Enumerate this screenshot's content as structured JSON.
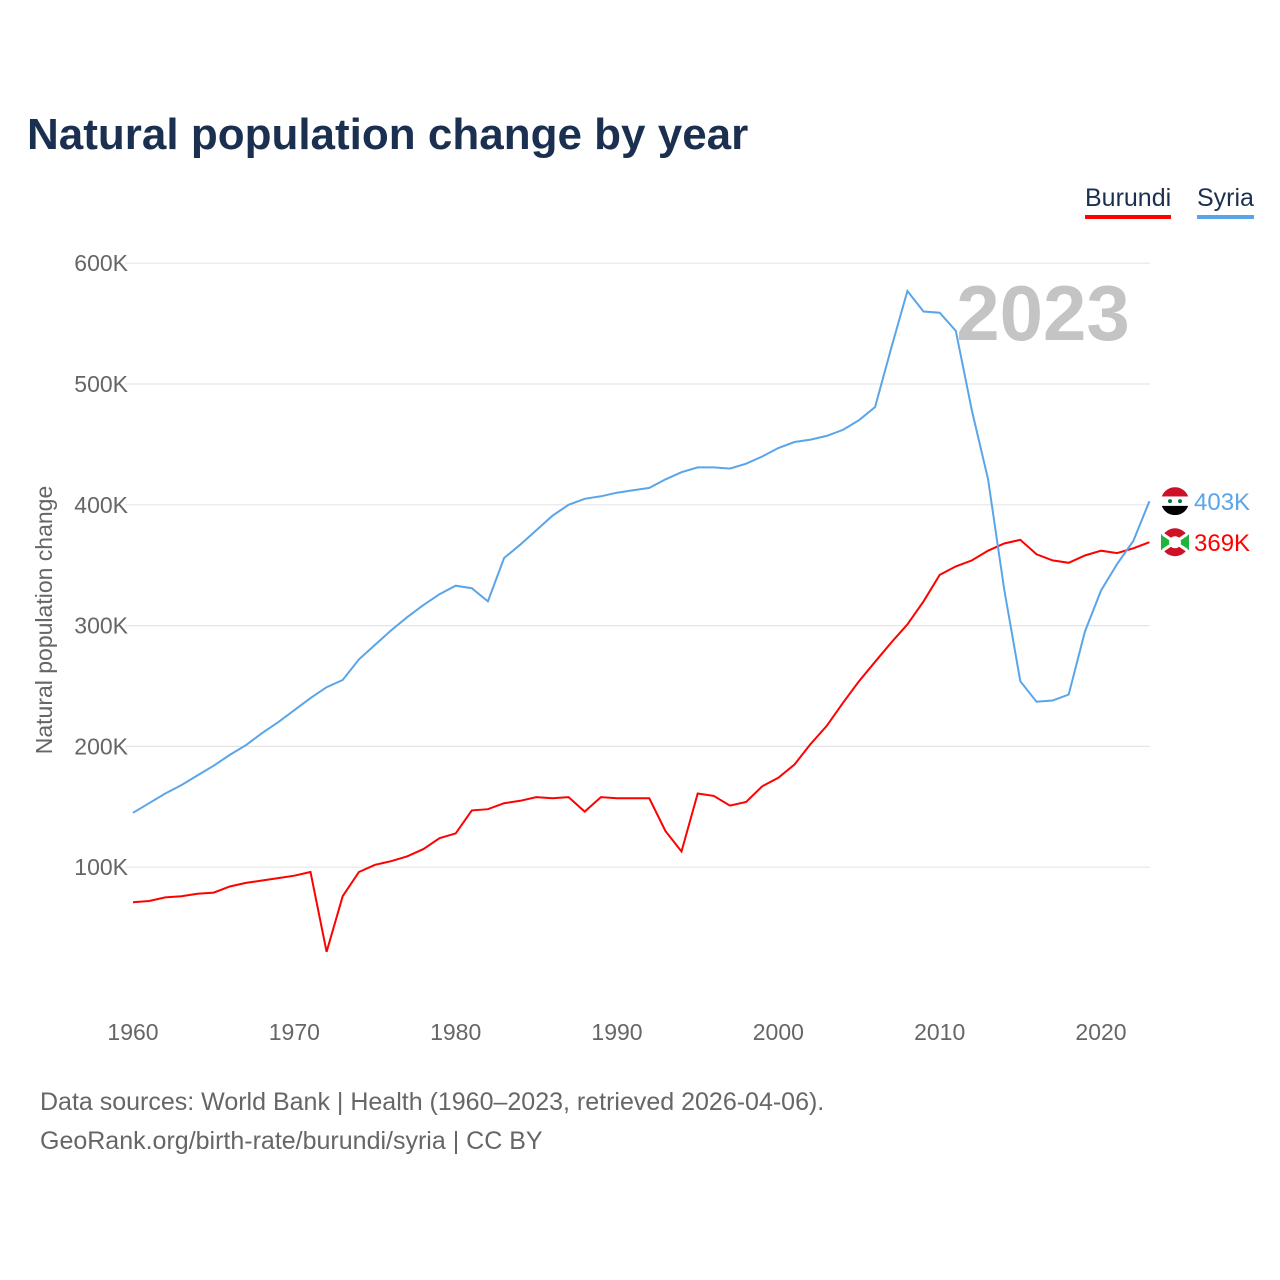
{
  "chart_data": {
    "type": "line",
    "title": "Natural population change by year",
    "ylabel": "Natural population change",
    "xlabel": "",
    "xlim": [
      1960,
      2023
    ],
    "ylim": [
      0,
      600000
    ],
    "x_ticks": [
      "1960",
      "1970",
      "1980",
      "1990",
      "2000",
      "2010",
      "2020"
    ],
    "y_ticks": [
      "100K",
      "200K",
      "300K",
      "400K",
      "500K",
      "600K"
    ],
    "grid": true,
    "legend_placement": "top-right",
    "year_watermark": "2023",
    "x": [
      1960,
      1961,
      1962,
      1963,
      1964,
      1965,
      1966,
      1967,
      1968,
      1969,
      1970,
      1971,
      1972,
      1973,
      1974,
      1975,
      1976,
      1977,
      1978,
      1979,
      1980,
      1981,
      1982,
      1983,
      1984,
      1985,
      1986,
      1987,
      1988,
      1989,
      1990,
      1991,
      1992,
      1993,
      1994,
      1995,
      1996,
      1997,
      1998,
      1999,
      2000,
      2001,
      2002,
      2003,
      2004,
      2005,
      2006,
      2007,
      2008,
      2009,
      2010,
      2011,
      2012,
      2013,
      2014,
      2015,
      2016,
      2017,
      2018,
      2019,
      2020,
      2021,
      2022,
      2023
    ],
    "series": [
      {
        "name": "Burundi",
        "color": "#ff0000",
        "end_label": "369K",
        "flag": "burundi-flag",
        "values": [
          71000,
          72000,
          75000,
          76000,
          78000,
          79000,
          84000,
          87000,
          89000,
          91000,
          93000,
          96000,
          30000,
          76000,
          96000,
          102000,
          105000,
          109000,
          115000,
          124000,
          128000,
          147000,
          148000,
          153000,
          155000,
          158000,
          157000,
          158000,
          146000,
          158000,
          157000,
          157000,
          157000,
          130000,
          113000,
          161000,
          159000,
          151000,
          154000,
          167000,
          174000,
          185000,
          202000,
          217000,
          236000,
          254000,
          270000,
          286000,
          301000,
          320000,
          342000,
          349000,
          354000,
          362000,
          368000,
          371000,
          359000,
          354000,
          352000,
          358000,
          362000,
          360000,
          364000,
          369000
        ]
      },
      {
        "name": "Syria",
        "color": "#5aa5ea",
        "end_label": "403K",
        "flag": "syria-flag",
        "values": [
          145000,
          153000,
          161000,
          168000,
          176000,
          184000,
          193000,
          201000,
          211000,
          220000,
          230000,
          240000,
          249000,
          255000,
          272000,
          284000,
          296000,
          307000,
          317000,
          326000,
          333000,
          331000,
          320000,
          356000,
          367000,
          379000,
          391000,
          400000,
          405000,
          407000,
          410000,
          412000,
          414000,
          421000,
          427000,
          431000,
          431000,
          430000,
          434000,
          440000,
          447000,
          452000,
          454000,
          457000,
          462000,
          470000,
          481000,
          530000,
          577000,
          560000,
          559000,
          544000,
          478000,
          421000,
          330000,
          254000,
          237000,
          238000,
          243000,
          295000,
          329000,
          351000,
          370000,
          403000
        ]
      }
    ]
  },
  "footer": {
    "line1": "Data sources: World Bank | Health (1960–2023, retrieved 2026-04-06).",
    "line2": "GeoRank.org/birth-rate/burundi/syria | CC BY"
  }
}
